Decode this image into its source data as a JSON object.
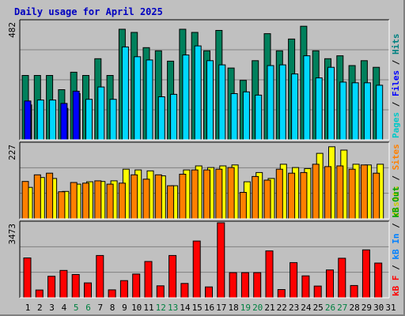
{
  "chart_data": {
    "type": "bar",
    "title": "Daily usage for April 2025",
    "x": [
      "1",
      "2",
      "3",
      "4",
      "5",
      "6",
      "7",
      "8",
      "9",
      "10",
      "11",
      "12",
      "13",
      "14",
      "15",
      "16",
      "17",
      "18",
      "19",
      "20",
      "21",
      "22",
      "23",
      "24",
      "25",
      "26",
      "27",
      "28",
      "29",
      "30",
      "31"
    ],
    "weekend_color": "#008040",
    "weekday_color": "#000000",
    "weekend_days": [
      5,
      6,
      12,
      13,
      19,
      20,
      26,
      27
    ],
    "panels": [
      {
        "id": "traffic",
        "ymax_label": "482",
        "ymax": 482,
        "series": [
          {
            "name": "Hits",
            "color": "#00805c",
            "values": [
              262,
              262,
              262,
              204,
              275,
              262,
              330,
              262,
              450,
              437,
              375,
              362,
              320,
              450,
              437,
              362,
              445,
              292,
              242,
              322,
              432,
              362,
              410,
              462,
              362,
              330,
              342,
              302,
              322,
              295
            ]
          },
          {
            "name": "Files",
            "color": "#00d8ff",
            "values": [
              142,
              162,
              162,
              128,
              188,
              165,
              215,
              165,
              378,
              338,
              325,
              175,
              185,
              345,
              382,
              322,
              305,
              188,
              195,
              182,
              302,
              305,
              268,
              342,
              252,
              295,
              235,
              232,
              232,
              222
            ]
          },
          {
            "name": "Pages",
            "color": "#0000ff",
            "values": [
              158,
              0,
              0,
              148,
              198,
              0,
              0,
              0,
              0,
              0,
              0,
              0,
              0,
              0,
              0,
              0,
              0,
              0,
              0,
              0,
              0,
              0,
              0,
              0,
              0,
              0,
              0,
              0,
              0,
              0
            ]
          }
        ],
        "axis_label_parts": [
          {
            "text": "Pages",
            "color": "#00c8c8"
          },
          {
            "text": " / ",
            "color": "#000000"
          },
          {
            "text": "Files",
            "color": "#0000ff"
          },
          {
            "text": " / ",
            "color": "#000000"
          },
          {
            "text": "Hits",
            "color": "#008080"
          }
        ]
      },
      {
        "id": "visits",
        "ymax_label": "227",
        "ymax": 227,
        "series": [
          {
            "name": "Visits",
            "color": "#ffff00",
            "values": [
              95,
              125,
              122,
              83,
              105,
              112,
              113,
              115,
              150,
              148,
              145,
              130,
              100,
              148,
              160,
              155,
              160,
              163,
              112,
              140,
              122,
              165,
              155,
              152,
              198,
              218,
              208,
              165,
              163,
              165
            ]
          },
          {
            "name": "Sites",
            "color": "#ff8000",
            "values": [
              113,
              133,
              138,
              82,
              110,
              108,
              115,
              105,
              108,
              133,
              120,
              133,
              100,
              135,
              148,
              148,
              150,
              155,
              80,
              128,
              117,
              150,
              138,
              140,
              165,
              158,
              160,
              150,
              163,
              138
            ]
          }
        ],
        "axis_label_parts": [
          {
            "text": "Visits",
            "color": "#cccc00"
          },
          {
            "text": " / ",
            "color": "#000000"
          },
          {
            "text": "Sites",
            "color": "#ff8000"
          }
        ]
      },
      {
        "id": "bandwidth",
        "ymax_label": "3473",
        "ymax": 3473,
        "series": [
          {
            "name": "kB F",
            "color": "#ff0000",
            "values": [
              1845,
              361,
              998,
              1270,
              1080,
              691,
              1960,
              369,
              798,
              1099,
              1680,
              554,
              1960,
              665,
              2630,
              504,
              3473,
              1165,
              1165,
              1165,
              2170,
              384,
              1630,
              1018,
              544,
              1290,
              1830,
              569,
              2220,
              1610
            ]
          }
        ],
        "axis_label_parts": [
          {
            "text": "kB F",
            "color": "#ff0000"
          },
          {
            "text": " / ",
            "color": "#000000"
          },
          {
            "text": "kB In",
            "color": "#0080ff"
          },
          {
            "text": " / ",
            "color": "#000000"
          },
          {
            "text": "kB Out",
            "color": "#00a000"
          }
        ]
      }
    ]
  }
}
